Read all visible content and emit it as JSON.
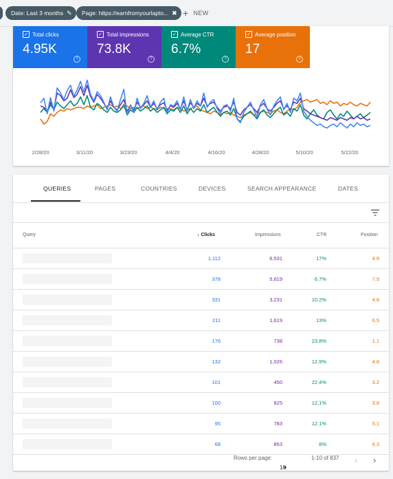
{
  "filters": {
    "date_chip": "Date: Last 3 months",
    "page_chip": "Page: https://earnfromyourlapto...",
    "new_label": "NEW"
  },
  "metrics": [
    {
      "label": "Total clicks",
      "value": "4.95K",
      "color": "#1a73e8"
    },
    {
      "label": "Total impressions",
      "value": "73.8K",
      "color": "#5e35b1"
    },
    {
      "label": "Average CTR",
      "value": "6.7%",
      "color": "#00897b"
    },
    {
      "label": "Average position",
      "value": "17",
      "color": "#e8710a"
    }
  ],
  "chart_data": {
    "type": "line",
    "x_tick_labels": [
      "2/28/20",
      "3/11/20",
      "3/23/20",
      "4/4/20",
      "4/16/20",
      "4/28/20",
      "5/10/20",
      "5/22/20"
    ],
    "series_colors": {
      "clicks": "#4285f4",
      "impressions": "#5e35b1",
      "ctr": "#00897b",
      "position": "#e8710a"
    },
    "series": [
      {
        "key": "clicks",
        "values": [
          55,
          62,
          38,
          63,
          42,
          78,
          70,
          60,
          74,
          82,
          65,
          75,
          88,
          72,
          90,
          68,
          58,
          72,
          66,
          56,
          44,
          64,
          48,
          42,
          60,
          76,
          36,
          52,
          40,
          62,
          46,
          54,
          66,
          48,
          58,
          44,
          56,
          62,
          40,
          52,
          50,
          58,
          44,
          64,
          42,
          60,
          46,
          58,
          50,
          70,
          48,
          56,
          60,
          46,
          38,
          50,
          52,
          42,
          62,
          30,
          24,
          40,
          48,
          56,
          44,
          32,
          52,
          60,
          46,
          36,
          50,
          58,
          64,
          44,
          54,
          40,
          62,
          58,
          70,
          42,
          34,
          28,
          24,
          20,
          22,
          18,
          16,
          20,
          22,
          18,
          24,
          20,
          16,
          22,
          18,
          24,
          20,
          22,
          18,
          20
        ]
      },
      {
        "key": "impressions",
        "values": [
          50,
          48,
          42,
          56,
          45,
          70,
          66,
          58,
          62,
          75,
          63,
          68,
          80,
          66,
          82,
          65,
          56,
          68,
          62,
          54,
          46,
          58,
          48,
          44,
          52,
          60,
          42,
          50,
          44,
          56,
          48,
          52,
          58,
          48,
          54,
          46,
          52,
          55,
          44,
          50,
          48,
          54,
          46,
          58,
          44,
          55,
          48,
          54,
          50,
          62,
          50,
          54,
          56,
          48,
          42,
          48,
          50,
          46,
          56,
          40,
          36,
          44,
          48,
          52,
          46,
          40,
          50,
          54,
          46,
          42,
          48,
          54,
          58,
          46,
          50,
          44,
          56,
          54,
          62,
          46,
          42,
          38,
          36,
          34,
          32,
          30,
          28,
          32,
          30,
          28,
          32,
          30,
          28,
          32,
          30,
          34,
          30,
          32,
          28,
          30
        ]
      },
      {
        "key": "ctr",
        "values": [
          40,
          46,
          40,
          52,
          44,
          56,
          50,
          46,
          52,
          58,
          50,
          54,
          64,
          52,
          66,
          48,
          44,
          54,
          50,
          44,
          40,
          48,
          42,
          40,
          44,
          52,
          36,
          44,
          40,
          48,
          42,
          46,
          50,
          42,
          46,
          40,
          44,
          48,
          38,
          44,
          42,
          48,
          40,
          50,
          38,
          46,
          40,
          46,
          42,
          52,
          40,
          44,
          48,
          40,
          34,
          40,
          42,
          36,
          46,
          30,
          26,
          34,
          38,
          42,
          36,
          30,
          40,
          44,
          36,
          32,
          38,
          44,
          48,
          36,
          40,
          34,
          46,
          42,
          52,
          36,
          30,
          38,
          44,
          36,
          32,
          30,
          40,
          44,
          36,
          30,
          38,
          34,
          42,
          36,
          30,
          34,
          38,
          32,
          36,
          40
        ]
      },
      {
        "key": "position",
        "values": [
          30,
          22,
          26,
          38,
          34,
          40,
          44,
          42,
          46,
          44,
          46,
          48,
          48,
          46,
          50,
          48,
          50,
          52,
          46,
          48,
          50,
          52,
          48,
          50,
          46,
          48,
          50,
          46,
          48,
          46,
          48,
          50,
          46,
          48,
          46,
          44,
          48,
          46,
          44,
          46,
          44,
          48,
          46,
          42,
          44,
          46,
          48,
          50,
          44,
          42,
          40,
          38,
          42,
          40,
          36,
          40,
          38,
          40,
          36,
          34,
          32,
          36,
          38,
          40,
          36,
          38,
          40,
          42,
          40,
          38,
          42,
          44,
          40,
          38,
          42,
          46,
          44,
          48,
          56,
          58,
          60,
          56,
          58,
          60,
          54,
          56,
          52,
          58,
          54,
          56,
          50,
          54,
          52,
          56,
          52,
          50,
          54,
          52,
          50,
          56
        ]
      }
    ]
  },
  "tabs": [
    "QUERIES",
    "PAGES",
    "COUNTRIES",
    "DEVICES",
    "SEARCH APPEARANCE",
    "DATES"
  ],
  "table": {
    "headers": {
      "query": "Query",
      "clicks": "Clicks",
      "impressions": "Impressions",
      "ctr": "CTR",
      "position": "Position"
    },
    "rows": [
      {
        "clicks": "1,112",
        "impressions": "6,531",
        "ctr": "17%",
        "position": "4.8"
      },
      {
        "clicks": "378",
        "impressions": "5,619",
        "ctr": "6.7%",
        "position": "7.9"
      },
      {
        "clicks": "331",
        "impressions": "3,231",
        "ctr": "10.2%",
        "position": "4.8"
      },
      {
        "clicks": "211",
        "impressions": "1,619",
        "ctr": "13%",
        "position": "6.5"
      },
      {
        "clicks": "176",
        "impressions": "738",
        "ctr": "23.8%",
        "position": "1.1"
      },
      {
        "clicks": "132",
        "impressions": "1,026",
        "ctr": "12.9%",
        "position": "4.8"
      },
      {
        "clicks": "101",
        "impressions": "450",
        "ctr": "22.4%",
        "position": "3.2"
      },
      {
        "clicks": "100",
        "impressions": "825",
        "ctr": "12.1%",
        "position": "3.8"
      },
      {
        "clicks": "95",
        "impressions": "783",
        "ctr": "12.1%",
        "position": "5.1"
      },
      {
        "clicks": "68",
        "impressions": "853",
        "ctr": "8%",
        "position": "6.3"
      }
    ]
  },
  "pagination": {
    "rows_per_page_label": "Rows per page:",
    "rows_per_page_value": "10",
    "range": "1-10 of 837"
  }
}
